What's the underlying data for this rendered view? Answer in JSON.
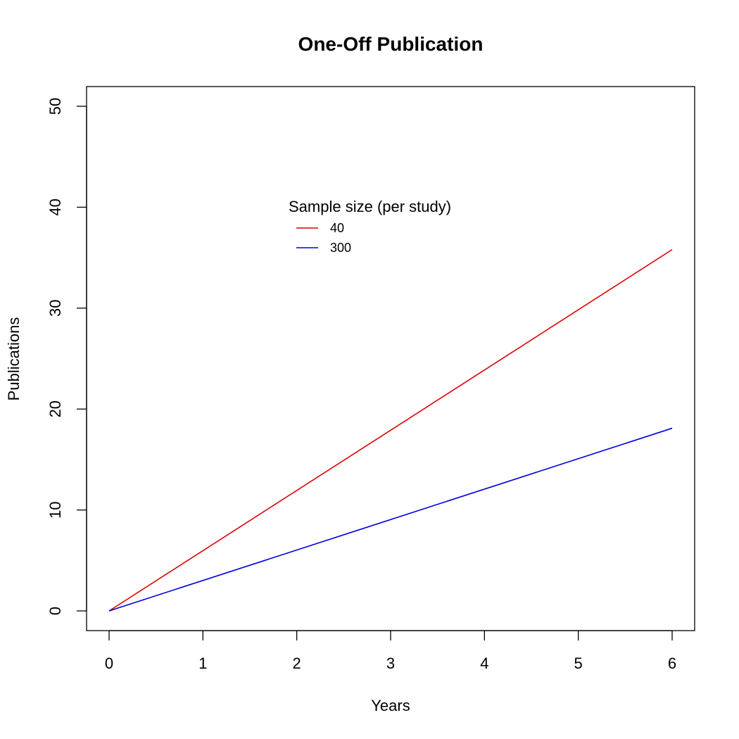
{
  "chart_data": {
    "type": "line",
    "title": "One-Off Publication",
    "xlabel": "Years",
    "ylabel": "Publications",
    "xlim": [
      0,
      6
    ],
    "ylim": [
      0,
      50
    ],
    "x_ticks": [
      0,
      1,
      2,
      3,
      4,
      5,
      6
    ],
    "y_ticks": [
      0,
      10,
      20,
      30,
      40,
      50
    ],
    "grid": false,
    "legend": {
      "title": "Sample size (per study)",
      "placement": "top-center",
      "boxed": false
    },
    "series": [
      {
        "name": "40",
        "color": "#dd0000",
        "x": [
          0,
          6
        ],
        "y": [
          0,
          35.8
        ]
      },
      {
        "name": "300",
        "color": "#0000dd",
        "x": [
          0,
          6
        ],
        "y": [
          0,
          18.1
        ]
      }
    ]
  }
}
